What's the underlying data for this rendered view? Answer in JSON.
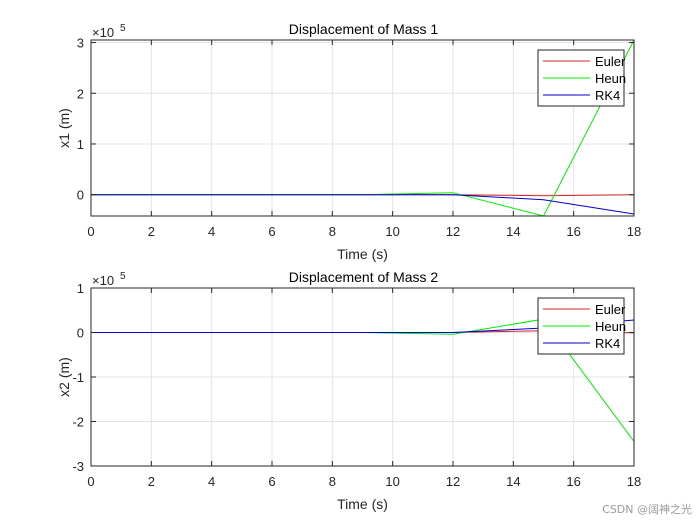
{
  "watermark": "CSDN @阔神之光",
  "chart_data": [
    {
      "type": "line",
      "title": "Displacement of Mass 1",
      "xlabel": "Time (s)",
      "ylabel": "x1 (m)",
      "exponent_label": "×10",
      "exponent_power": "5",
      "xlim": [
        0,
        18
      ],
      "ylim": [
        -0.42,
        3.05
      ],
      "xticks": [
        0,
        2,
        4,
        6,
        8,
        10,
        12,
        14,
        16,
        18
      ],
      "yticks": [
        0,
        1,
        2,
        3
      ],
      "grid": true,
      "legend_position": "top-right",
      "series": [
        {
          "name": "Euler",
          "color": "#d62728",
          "x": [
            0,
            3,
            6,
            9,
            12,
            15,
            18
          ],
          "y": [
            0,
            0,
            0,
            0,
            0,
            -0.02,
            0.0
          ]
        },
        {
          "name": "Heun",
          "color": "#00ee00",
          "x": [
            0,
            3,
            6,
            9,
            12,
            15,
            18
          ],
          "y": [
            0,
            0,
            0,
            0,
            0.04,
            -0.42,
            3.05
          ]
        },
        {
          "name": "RK4",
          "color": "#0000cc",
          "x": [
            0,
            3,
            6,
            9,
            12,
            15,
            18
          ],
          "y": [
            0,
            0,
            0,
            0,
            0,
            -0.1,
            -0.38
          ]
        }
      ]
    },
    {
      "type": "line",
      "title": "Displacement of Mass 2",
      "xlabel": "Time (s)",
      "ylabel": "x2 (m)",
      "exponent_label": "×10",
      "exponent_power": "5",
      "xlim": [
        0,
        18
      ],
      "ylim": [
        -3,
        1
      ],
      "xticks": [
        0,
        2,
        4,
        6,
        8,
        10,
        12,
        14,
        16,
        18
      ],
      "yticks": [
        -3,
        -2,
        -1,
        0,
        1
      ],
      "grid": true,
      "legend_position": "top-right",
      "series": [
        {
          "name": "Euler",
          "color": "#d62728",
          "x": [
            0,
            3,
            6,
            9,
            12,
            15,
            18
          ],
          "y": [
            0,
            0,
            0,
            0,
            0,
            0.04,
            -0.01
          ]
        },
        {
          "name": "Heun",
          "color": "#00ee00",
          "x": [
            0,
            3,
            6,
            9,
            12,
            15,
            18
          ],
          "y": [
            0,
            0,
            0,
            0,
            -0.04,
            0.3,
            -2.45
          ]
        },
        {
          "name": "RK4",
          "color": "#0000cc",
          "x": [
            0,
            3,
            6,
            9,
            12,
            15,
            18
          ],
          "y": [
            0,
            0,
            0,
            0,
            0,
            0.1,
            0.28
          ]
        }
      ]
    }
  ]
}
